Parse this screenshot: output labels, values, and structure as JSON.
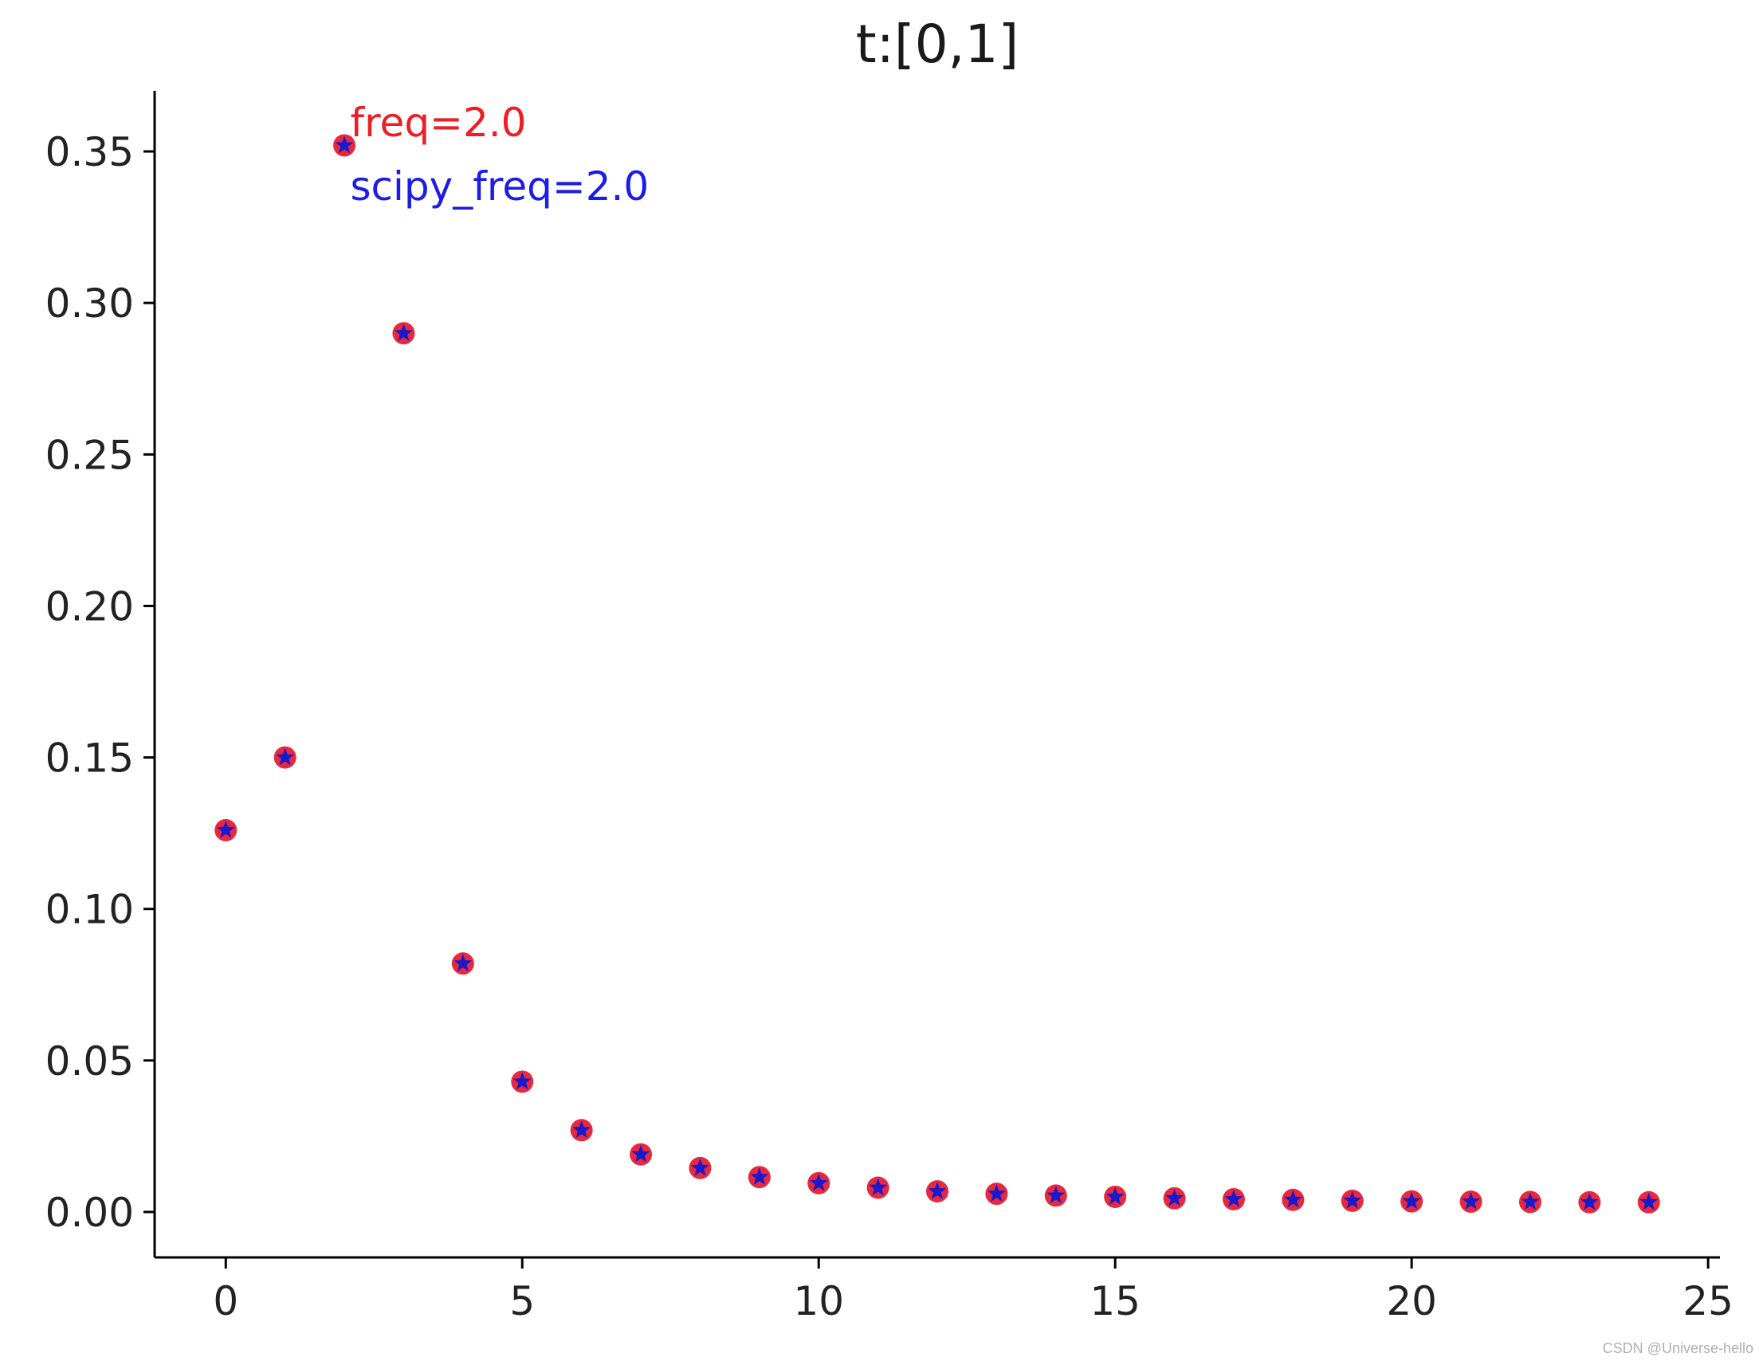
{
  "chart_data": {
    "type": "scatter",
    "title": "t:[0,1]",
    "xlabel": "",
    "ylabel": "",
    "xlim": [
      -1.2,
      25.2
    ],
    "ylim": [
      -0.015,
      0.37
    ],
    "x_ticks": [
      0,
      5,
      10,
      15,
      20,
      25
    ],
    "y_ticks": [
      0.0,
      0.05,
      0.1,
      0.15,
      0.2,
      0.25,
      0.3,
      0.35
    ],
    "x_tick_labels": [
      "0",
      "5",
      "10",
      "15",
      "20",
      "25"
    ],
    "y_tick_labels": [
      "0.00",
      "0.05",
      "0.10",
      "0.15",
      "0.20",
      "0.25",
      "0.30",
      "0.35"
    ],
    "grid": false,
    "spines": "left-bottom",
    "x": [
      0,
      1,
      2,
      3,
      4,
      5,
      6,
      7,
      8,
      9,
      10,
      11,
      12,
      13,
      14,
      15,
      16,
      17,
      18,
      19,
      20,
      21,
      22,
      23,
      24
    ],
    "series": [
      {
        "marker": "circle",
        "color": "#e8283c",
        "values": [
          0.126,
          0.15,
          0.352,
          0.29,
          0.082,
          0.043,
          0.027,
          0.019,
          0.0145,
          0.0115,
          0.0095,
          0.008,
          0.0068,
          0.006,
          0.0054,
          0.005,
          0.0045,
          0.0042,
          0.004,
          0.0037,
          0.0035,
          0.0034,
          0.0033,
          0.0032,
          0.0032
        ]
      },
      {
        "marker": "star",
        "color": "#1a1acc",
        "values": [
          0.126,
          0.15,
          0.352,
          0.29,
          0.082,
          0.043,
          0.027,
          0.019,
          0.0145,
          0.0115,
          0.0095,
          0.008,
          0.0068,
          0.006,
          0.0054,
          0.005,
          0.0045,
          0.0042,
          0.004,
          0.0037,
          0.0035,
          0.0034,
          0.0033,
          0.0032,
          0.0032
        ]
      }
    ],
    "annotations": [
      {
        "text": "freq=2.0",
        "x": 2.1,
        "y": 0.355,
        "color": "#ee1c24"
      },
      {
        "text": "scipy_freq=2.0",
        "x": 2.1,
        "y": 0.334,
        "color": "#1c1ce6"
      }
    ]
  },
  "watermark": "CSDN @Universe-hello"
}
